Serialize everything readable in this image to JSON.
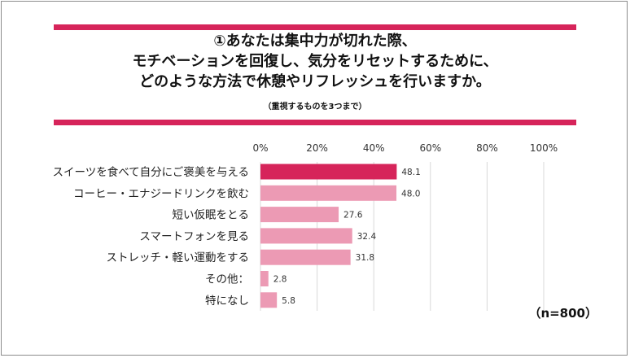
{
  "chart_data": {
    "type": "bar",
    "orientation": "horizontal",
    "title_lines": [
      "①あなたは集中力が切れた際、",
      "モチベーションを回復し、気分をリセットするために、",
      "どのような方法で休憩やリフレッシュを行いますか。"
    ],
    "subtitle": "（重視するものを3つまで）",
    "categories": [
      "スイーツを食べて自分にご褒美を与える",
      "コーヒー・エナジードリンクを飲む",
      "短い仮眠をとる",
      "スマートフォンを見る",
      "ストレッチ・軽い運動をする",
      "その他：",
      "特になし"
    ],
    "values": [
      48.1,
      48.0,
      27.6,
      32.4,
      31.8,
      2.8,
      5.8
    ],
    "value_labels": [
      "48.1",
      "48.0",
      "27.6",
      "32.4",
      "31.8",
      "2.8",
      "5.8"
    ],
    "xlim": [
      0,
      100
    ],
    "x_ticks": [
      "0%",
      "20%",
      "40%",
      "60%",
      "80%",
      "100%"
    ],
    "tick_values": [
      0,
      20,
      40,
      60,
      80,
      100
    ],
    "grid": true,
    "note": "（n=800）",
    "colors": {
      "highlight": "#d6245a",
      "bar": "#ec9ab4",
      "band": "#d6245a",
      "grid": "#d9d9d9"
    },
    "highlight_index": 0
  }
}
